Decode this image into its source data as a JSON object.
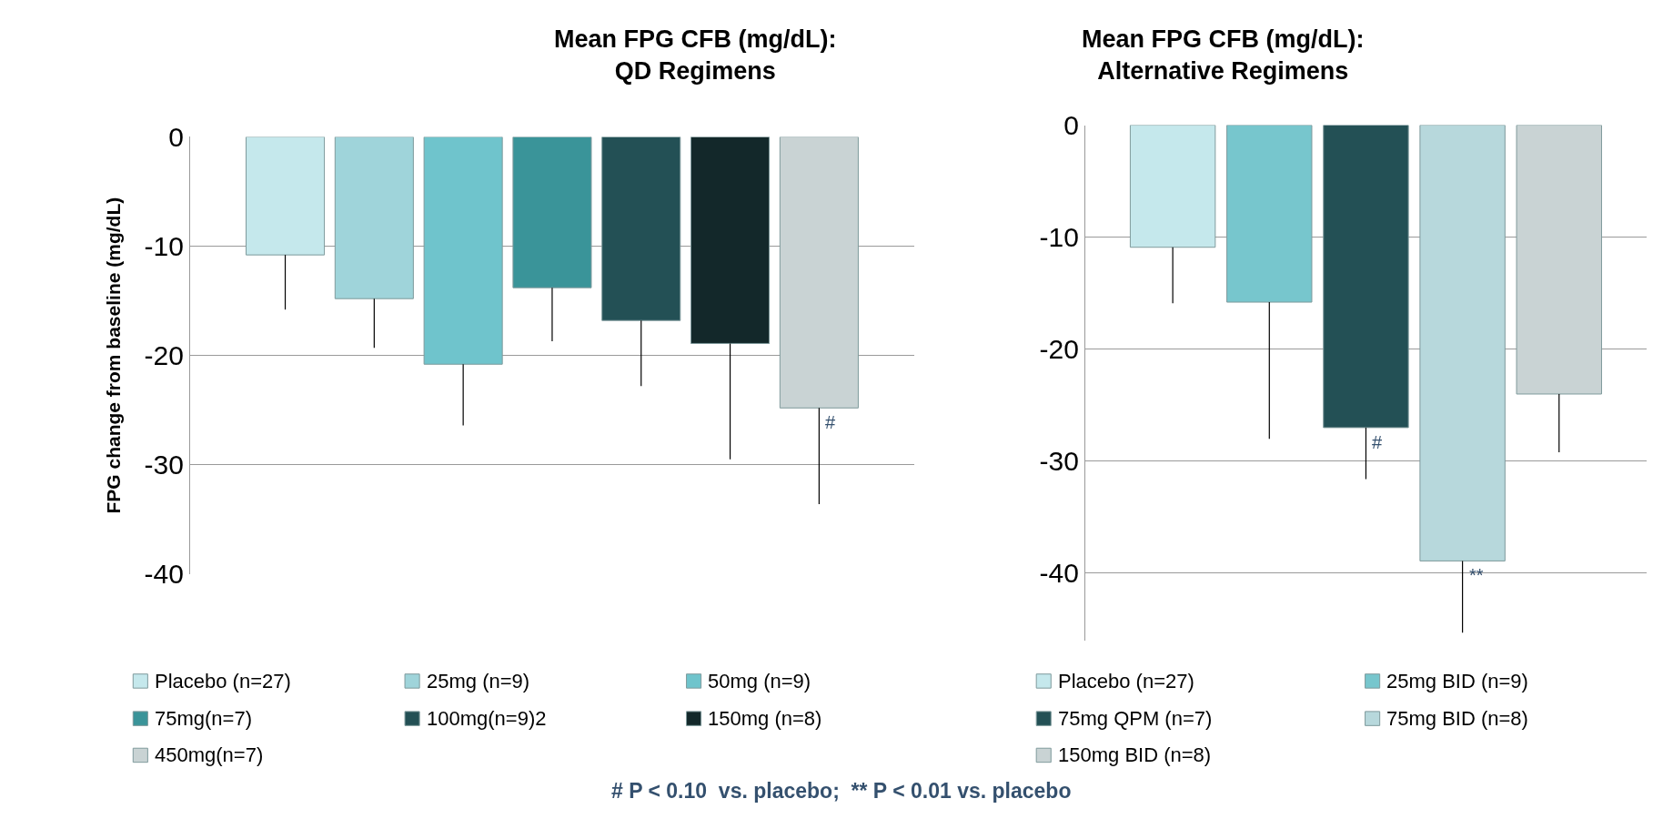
{
  "chart_data": [
    {
      "type": "bar",
      "title": "Mean FPG CFB (mg/dL):\nQD Regimens",
      "ylabel": "FPG change from baseline (mg/dL)",
      "categories": [
        null
      ],
      "ylim": [
        -40,
        0
      ],
      "yticks": [
        0,
        -10,
        -20,
        -30,
        -40
      ],
      "grid": "y",
      "legend": "bottom",
      "series": [
        {
          "name": "Placebo (n=27)",
          "color": "#c5e8ec",
          "values": [
            -10.8
          ],
          "errors": [
            [
              -15.8,
              -10.8
            ]
          ]
        },
        {
          "name": "25mg (n=9)",
          "color": "#9fd4da",
          "values": [
            -14.8
          ],
          "errors": [
            [
              -19.3,
              -14.8
            ]
          ]
        },
        {
          "name": "50mg (n=9)",
          "color": "#6fc4cc",
          "values": [
            -20.8
          ],
          "errors": [
            [
              -26.4,
              -20.8
            ]
          ]
        },
        {
          "name": "75mg(n=7)",
          "color": "#3a9499",
          "values": [
            -13.8
          ],
          "errors": [
            [
              -18.7,
              -13.8
            ]
          ]
        },
        {
          "name": "100mg(n=9)2",
          "color": "#235055",
          "values": [
            -16.8
          ],
          "errors": [
            [
              -22.8,
              -16.8
            ]
          ]
        },
        {
          "name": "150mg (n=8)",
          "color": "#13282a",
          "values": [
            -18.9
          ],
          "errors": [
            [
              -29.5,
              -18.9
            ]
          ]
        },
        {
          "name": "450mg(n=7)",
          "color": "#c9d3d4",
          "values": [
            -24.8
          ],
          "errors": [
            [
              -33.6,
              -24.8
            ]
          ],
          "value_labels": [
            "#"
          ]
        }
      ],
      "annotations": [
        "# P < 0.10  vs. placebo;  ** P < 0.01 vs. placebo"
      ]
    },
    {
      "type": "bar",
      "title": "Mean FPG CFB (mg/dL):\nAlternative Regimens",
      "categories": [
        null
      ],
      "ylim": [
        -46,
        0
      ],
      "yticks": [
        0,
        -10,
        -20,
        -30,
        -40
      ],
      "grid": "y",
      "legend": "bottom",
      "series": [
        {
          "name": "Placebo (n=27)",
          "color": "#c5e8ec",
          "values": [
            -10.9
          ],
          "errors": [
            [
              -15.9,
              -10.9
            ]
          ]
        },
        {
          "name": "25mg BID (n=9)",
          "color": "#77c6cd",
          "values": [
            -15.8
          ],
          "errors": [
            [
              -28.0,
              -15.8
            ]
          ]
        },
        {
          "name": "75mg QPM (n=7)",
          "color": "#235055",
          "values": [
            -27.0
          ],
          "errors": [
            [
              -31.6,
              -27.0
            ]
          ],
          "value_labels": [
            "#"
          ]
        },
        {
          "name": "75mg BID (n=8)",
          "color": "#b7d8dc",
          "values": [
            -38.9
          ],
          "errors": [
            [
              -45.3,
              -38.9
            ]
          ],
          "value_labels": [
            "**"
          ]
        },
        {
          "name": "150mg BID (n=8)",
          "color": "#c9d3d4",
          "values": [
            -24.0
          ],
          "errors": [
            [
              -29.2,
              -24.0
            ]
          ]
        }
      ]
    }
  ]
}
